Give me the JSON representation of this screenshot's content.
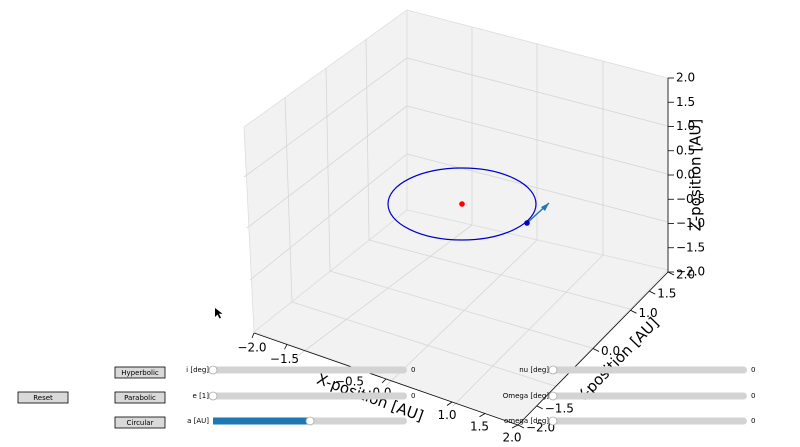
{
  "axes": {
    "xlabel": "X-position [AU]",
    "ylabel": "Y-position [AU]",
    "zlabel": "Z-position [AU]",
    "xlim": [
      -2,
      2
    ],
    "ylim": [
      -2,
      2
    ],
    "zlim": [
      -2,
      2
    ],
    "xticks": [
      {
        "value": -2,
        "label": "−2.0"
      },
      {
        "value": -1.5,
        "label": "−1.5"
      },
      {
        "value": -0.5,
        "label": "−0.5"
      },
      {
        "value": 0,
        "label": "0.0"
      },
      {
        "value": 1,
        "label": "1.0"
      },
      {
        "value": 1.5,
        "label": "1.5"
      },
      {
        "value": 2,
        "label": "2.0"
      }
    ],
    "yticks": [
      {
        "value": 2,
        "label": "2.0"
      },
      {
        "value": 1.5,
        "label": "1.5"
      },
      {
        "value": 1,
        "label": "1.0"
      },
      {
        "value": 0,
        "label": "0.0"
      },
      {
        "value": -1.5,
        "label": "−1.5"
      },
      {
        "value": -2,
        "label": "−2.0"
      }
    ],
    "zticks": [
      {
        "value": 2,
        "label": "2.0"
      },
      {
        "value": 1.5,
        "label": "1.5"
      },
      {
        "value": 1,
        "label": "1.0"
      },
      {
        "value": 0.5,
        "label": "0.5"
      },
      {
        "value": 0,
        "label": "0.0"
      },
      {
        "value": -0.5,
        "label": "−0.5"
      },
      {
        "value": -1,
        "label": "−1.0"
      },
      {
        "value": -1.5,
        "label": "−1.5"
      },
      {
        "value": -2,
        "label": "−2.0"
      }
    ]
  },
  "buttons": [
    "Reset",
    "Hyperbolic",
    "Parabolic",
    "Circular"
  ],
  "sliders": [
    {
      "label": "i [deg]",
      "value": "0"
    },
    {
      "label": "e [1]",
      "value": "0"
    },
    {
      "label": "a [AU]",
      "position": 0.5
    },
    {
      "label": "nu [deg]",
      "value": "0"
    },
    {
      "label": "Omega [deg]",
      "value": "0"
    },
    {
      "label": "omega [deg]",
      "value": "0"
    }
  ]
}
